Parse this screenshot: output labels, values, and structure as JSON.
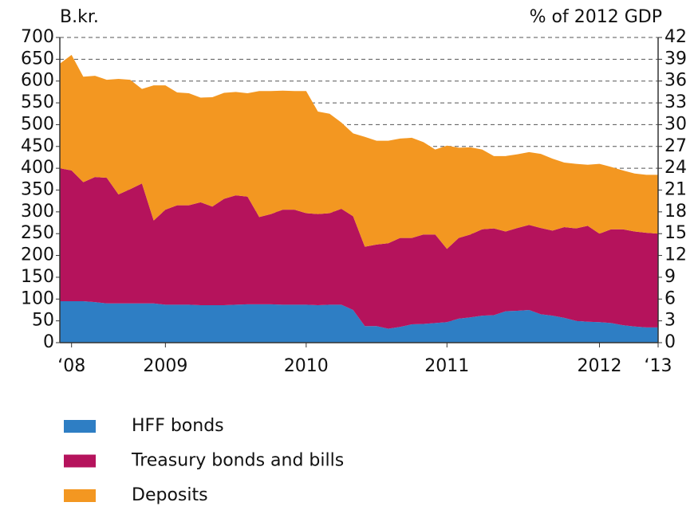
{
  "chart_data": {
    "type": "stacked_area",
    "y_label": "B.kr.",
    "y2_label": "% of 2012 GDP",
    "categories": [
      null,
      "‘08",
      null,
      null,
      null,
      null,
      null,
      null,
      null,
      "2009",
      null,
      null,
      null,
      null,
      null,
      null,
      null,
      null,
      null,
      null,
      null,
      "2010",
      null,
      null,
      null,
      null,
      null,
      null,
      null,
      null,
      null,
      null,
      null,
      "2011",
      null,
      null,
      null,
      null,
      null,
      null,
      null,
      null,
      null,
      null,
      null,
      null,
      "2012",
      null,
      null,
      null,
      null,
      "‘13"
    ],
    "series": [
      {
        "name": "HFF bonds",
        "color": "#2e7ec4",
        "values": [
          95,
          95,
          95,
          93,
          90,
          90,
          90,
          90,
          90,
          87,
          87,
          87,
          86,
          86,
          86,
          87,
          88,
          88,
          88,
          87,
          87,
          87,
          86,
          87,
          87,
          75,
          38,
          38,
          32,
          36,
          42,
          43,
          45,
          47,
          55,
          58,
          62,
          63,
          72,
          73,
          75,
          65,
          62,
          57,
          50,
          48,
          47,
          45,
          40,
          37,
          35,
          35
        ]
      },
      {
        "name": "Treasury bonds and bills",
        "color": "#b5135c",
        "values": [
          305,
          300,
          273,
          287,
          288,
          250,
          262,
          275,
          190,
          218,
          228,
          228,
          236,
          226,
          244,
          251,
          247,
          200,
          207,
          218,
          218,
          210,
          209,
          210,
          220,
          215,
          182,
          187,
          196,
          204,
          198,
          205,
          203,
          168,
          185,
          190,
          198,
          199,
          183,
          190,
          195,
          198,
          195,
          208,
          212,
          220,
          203,
          215,
          220,
          218,
          217,
          215
        ]
      },
      {
        "name": "Deposits",
        "color": "#f39721",
        "values": [
          240,
          265,
          242,
          232,
          225,
          265,
          251,
          217,
          310,
          285,
          259,
          257,
          240,
          251,
          243,
          237,
          237,
          289,
          282,
          273,
          272,
          280,
          235,
          228,
          198,
          190,
          252,
          238,
          235,
          228,
          230,
          212,
          195,
          237,
          207,
          200,
          183,
          166,
          173,
          169,
          167,
          170,
          165,
          148,
          148,
          140,
          160,
          143,
          135,
          133,
          133,
          135
        ]
      }
    ],
    "ylim": [
      0,
      700
    ],
    "yticks": [
      0,
      50,
      100,
      150,
      200,
      250,
      300,
      350,
      400,
      450,
      500,
      550,
      600,
      650,
      700
    ],
    "y2lim": [
      0,
      42
    ],
    "y2ticks": [
      0,
      3,
      6,
      9,
      12,
      15,
      18,
      21,
      24,
      27,
      30,
      33,
      36,
      39,
      42
    ],
    "grid": true
  }
}
